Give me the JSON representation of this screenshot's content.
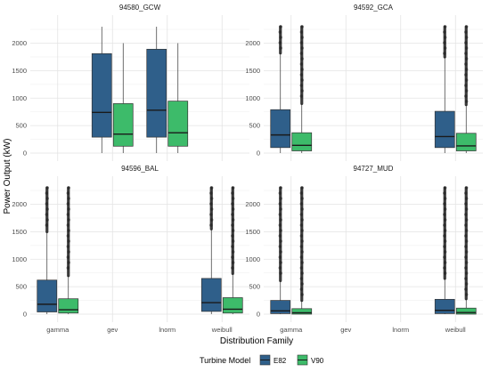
{
  "chart_data": {
    "type": "boxplot",
    "xlabel": "Distribution Family",
    "ylabel": "Power Output (kW)",
    "categories": [
      "gamma",
      "gev",
      "lnorm",
      "weibull"
    ],
    "ylim": [
      0,
      2300
    ],
    "yticks": [
      0,
      500,
      1000,
      1500,
      2000
    ],
    "grid": true,
    "legend": {
      "title": "Turbine Model",
      "position": "bottom",
      "entries": [
        {
          "name": "E82",
          "color": "#2f5f8a"
        },
        {
          "name": "V90",
          "color": "#3dbb6a"
        }
      ]
    },
    "panels": [
      {
        "title": "94580_GCW",
        "boxes": [
          {
            "category": "gev",
            "series": "E82",
            "min": 0,
            "q1": 290,
            "median": 740,
            "q3": 1810,
            "max": 2300,
            "outliers": false
          },
          {
            "category": "gev",
            "series": "V90",
            "min": 0,
            "q1": 125,
            "median": 345,
            "q3": 900,
            "max": 2000,
            "outliers": false
          },
          {
            "category": "lnorm",
            "series": "E82",
            "min": 0,
            "q1": 290,
            "median": 780,
            "q3": 1890,
            "max": 2300,
            "outliers": false
          },
          {
            "category": "lnorm",
            "series": "V90",
            "min": 0,
            "q1": 125,
            "median": 370,
            "q3": 945,
            "max": 2000,
            "outliers": false
          }
        ]
      },
      {
        "title": "94592_GCA",
        "boxes": [
          {
            "category": "gamma",
            "series": "E82",
            "min": 0,
            "q1": 100,
            "median": 330,
            "q3": 790,
            "max": 1820,
            "outliers": true
          },
          {
            "category": "gamma",
            "series": "V90",
            "min": 0,
            "q1": 40,
            "median": 140,
            "q3": 370,
            "max": 900,
            "outliers": true
          },
          {
            "category": "weibull",
            "series": "E82",
            "min": 0,
            "q1": 100,
            "median": 300,
            "q3": 760,
            "max": 1750,
            "outliers": true
          },
          {
            "category": "weibull",
            "series": "V90",
            "min": 0,
            "q1": 40,
            "median": 130,
            "q3": 360,
            "max": 880,
            "outliers": true
          }
        ]
      },
      {
        "title": "94596_BAL",
        "boxes": [
          {
            "category": "gamma",
            "series": "E82",
            "min": 0,
            "q1": 40,
            "median": 180,
            "q3": 620,
            "max": 1500,
            "outliers": true
          },
          {
            "category": "gamma",
            "series": "V90",
            "min": 0,
            "q1": 20,
            "median": 80,
            "q3": 280,
            "max": 700,
            "outliers": true
          },
          {
            "category": "weibull",
            "series": "E82",
            "min": 0,
            "q1": 50,
            "median": 210,
            "q3": 650,
            "max": 1550,
            "outliers": true
          },
          {
            "category": "weibull",
            "series": "V90",
            "min": 0,
            "q1": 20,
            "median": 90,
            "q3": 300,
            "max": 740,
            "outliers": true
          }
        ]
      },
      {
        "title": "94727_MUD",
        "boxes": [
          {
            "category": "gamma",
            "series": "E82",
            "min": 0,
            "q1": 10,
            "median": 60,
            "q3": 250,
            "max": 610,
            "outliers": true
          },
          {
            "category": "gamma",
            "series": "V90",
            "min": 0,
            "q1": 0,
            "median": 25,
            "q3": 100,
            "max": 250,
            "outliers": true
          },
          {
            "category": "weibull",
            "series": "E82",
            "min": 0,
            "q1": 10,
            "median": 70,
            "q3": 270,
            "max": 650,
            "outliers": true
          },
          {
            "category": "weibull",
            "series": "V90",
            "min": 0,
            "q1": 0,
            "median": 30,
            "q3": 110,
            "max": 280,
            "outliers": true
          }
        ]
      }
    ]
  }
}
